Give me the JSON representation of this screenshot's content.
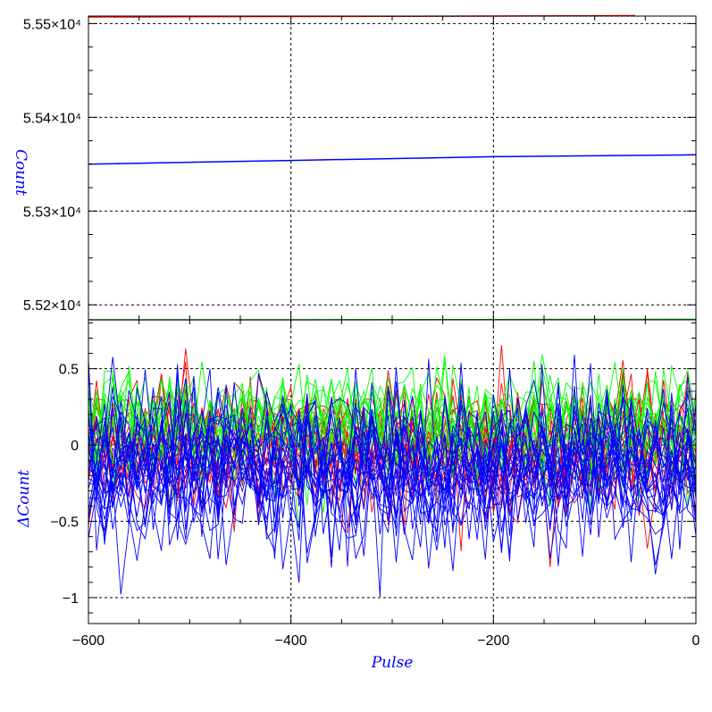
{
  "chart_data": [
    {
      "type": "line",
      "panel": "top",
      "ylabel": "Count",
      "ylim": [
        55184,
        55508
      ],
      "xlim": [
        -600,
        0
      ],
      "yticks": [
        {
          "value": 55200,
          "label": "5.52×10⁴"
        },
        {
          "value": 55300,
          "label": "5.53×10⁴"
        },
        {
          "value": 55400,
          "label": "5.54×10⁴"
        },
        {
          "value": 55500,
          "label": "5.55×10⁴"
        }
      ],
      "grid": true,
      "series": [
        {
          "color": "#ff0000",
          "x": [
            -600,
            -400,
            -200,
            -60
          ],
          "y": [
            55507,
            55507.5,
            55508,
            55508.5
          ]
        },
        {
          "color": "#0000ff",
          "x": [
            -600,
            -400,
            -200,
            0
          ],
          "y": [
            55350,
            55354,
            55358,
            55360
          ]
        },
        {
          "color": "#00aa00",
          "x": [
            -600,
            -400,
            -200,
            0
          ],
          "y": [
            55184,
            55184,
            55184.3,
            55184.5
          ]
        }
      ]
    },
    {
      "type": "line",
      "panel": "bottom",
      "xlabel": "Pulse",
      "ylabel": "ΔCount",
      "xlim": [
        -600,
        0
      ],
      "ylim": [
        -1.17,
        0.82
      ],
      "xticks": [
        {
          "value": -600,
          "label": "−600"
        },
        {
          "value": -400,
          "label": "−400"
        },
        {
          "value": -200,
          "label": "−200"
        },
        {
          "value": 0,
          "label": "0"
        }
      ],
      "yticks": [
        {
          "value": 0.5,
          "label": "0.5"
        },
        {
          "value": 0,
          "label": "0"
        },
        {
          "value": -0.5,
          "label": "−0.5"
        },
        {
          "value": -1,
          "label": "−1"
        }
      ],
      "grid": true,
      "series": [
        {
          "color": "#ff0000",
          "traces": 15,
          "mean": 0.0,
          "spread": 0.2,
          "min": -0.8,
          "max": 0.72
        },
        {
          "color": "#00ff00",
          "traces": 15,
          "mean": 0.12,
          "spread": 0.18,
          "min": -0.55,
          "max": 0.82
        },
        {
          "color": "#0000ff",
          "traces": 22,
          "mean": -0.15,
          "spread": 0.25,
          "min": -1.17,
          "max": 0.68
        }
      ]
    }
  ],
  "colors": {
    "grid": "#000000",
    "axis_title": "#0000ff",
    "frame": "#000000"
  }
}
